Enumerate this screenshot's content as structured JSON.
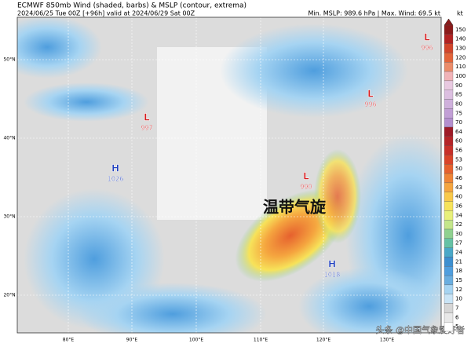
{
  "header": {
    "title": "ECMWF 850mb Wind (shaded, barbs) & MSLP (contour, extrema)",
    "subtitle": "2024/06/25 Tue 00Z [+96h] valid at 2024/06/29 Sat 00Z",
    "stats": "Min. MSLP: 989.6 hPa | Max. Wind: 69.5 kt"
  },
  "colorbar": {
    "unit": "kt",
    "ticks": [
      150,
      140,
      130,
      120,
      110,
      100,
      90,
      85,
      80,
      75,
      70,
      64,
      60,
      56,
      53,
      50,
      46,
      43,
      40,
      36,
      34,
      32,
      30,
      27,
      24,
      21,
      18,
      15,
      12,
      10,
      7,
      6,
      5
    ],
    "colors": [
      "#8b1a1a",
      "#b22222",
      "#d2452b",
      "#e3643a",
      "#eb8c6a",
      "#f1b3b8",
      "#e8c9e0",
      "#dcbfe0",
      "#cfb0dc",
      "#c29fd6",
      "#b48fcf",
      "#9e1a27",
      "#b52428",
      "#c8302a",
      "#d9442a",
      "#e6612e",
      "#ef8436",
      "#f5a53f",
      "#f9c94a",
      "#f7e35a",
      "#e8f07a",
      "#c4e68a",
      "#8fd18f",
      "#66c2a5",
      "#4aa8c8",
      "#3c8fd0",
      "#4f9ede",
      "#6aaee0",
      "#a6d4f2",
      "#c9e4f6",
      "#d6d6d6",
      "#e8e8e8",
      "#ffffff"
    ]
  },
  "latitude_labels": [
    "50°N",
    "40°N",
    "30°N",
    "20°N"
  ],
  "longitude_labels": [
    "80°E",
    "90°E",
    "100°E",
    "110°E",
    "120°E",
    "130°E"
  ],
  "centers": [
    {
      "symbol": "L",
      "value": "996"
    },
    {
      "symbol": "L",
      "value": "996"
    },
    {
      "symbol": "L",
      "value": "997"
    },
    {
      "symbol": "H",
      "value": "1026"
    },
    {
      "symbol": "L",
      "value": "990"
    },
    {
      "symbol": "H",
      "value": "1018"
    }
  ],
  "annotation": "温带气旋",
  "watermark": "头条 @中国气象爱好者"
}
